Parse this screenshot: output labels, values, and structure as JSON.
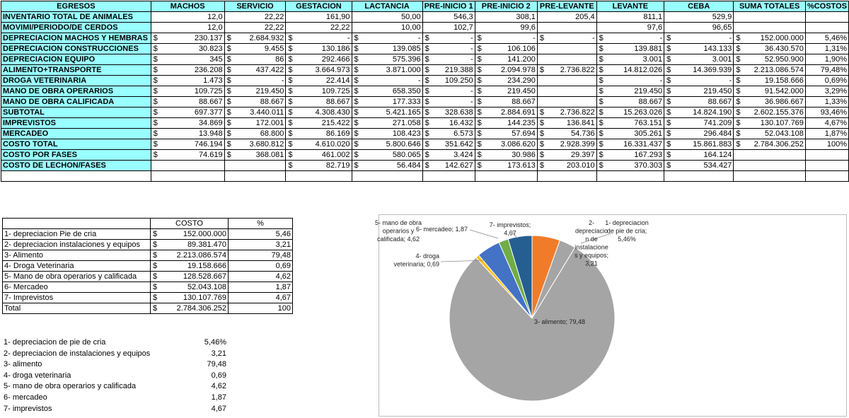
{
  "main_table": {
    "headers": [
      "EGRESOS",
      "MACHOS",
      "SERVICIO",
      "GESTACION",
      "LACTANCIA",
      "PRE-INICIO 1",
      "PRE-INICIO 2",
      "PRE-LEVANTE",
      "LEVANTE",
      "CEBA",
      "SUMA TOTALES",
      "%COSTOS"
    ],
    "currency_symbol": "$",
    "rows": [
      {
        "label": "INVENTARIO TOTAL DE ANIMALES",
        "cur": false,
        "cells": [
          "12,0",
          "22,22",
          "161,90",
          "50,00",
          "546,3",
          "308,1",
          "205,4",
          "811,1",
          "529,9",
          "",
          ""
        ]
      },
      {
        "label": "MOVIMI/PERIODO/DE CERDOS",
        "cur": false,
        "cells": [
          "12,0",
          "22,22",
          "22,22",
          "10,00",
          "102,7",
          "99,6",
          "",
          "97,6",
          "96,65",
          "",
          ""
        ]
      },
      {
        "label": "DEPRECIACION MACHOS Y HEMBRAS",
        "cur": true,
        "cells": [
          "230.137",
          "2.684.932",
          "-",
          "-",
          "-",
          "-",
          "-",
          "-",
          "-",
          "152.000.000",
          "5,46%"
        ],
        "sym": [
          1,
          1,
          1,
          1,
          1,
          1,
          1,
          1,
          1,
          1,
          0
        ]
      },
      {
        "label": "DEPRECIACION CONSTRUCCIONES",
        "cur": true,
        "cells": [
          "30.823",
          "9.455",
          "130.186",
          "139.085",
          "-",
          "106.106",
          "",
          "139.881",
          "143.133",
          "36.430.570",
          "1,31%"
        ],
        "sym": [
          1,
          1,
          1,
          1,
          1,
          1,
          0,
          1,
          1,
          1,
          0
        ]
      },
      {
        "label": "DEPRECIACION EQUIPO",
        "cur": true,
        "cells": [
          "345",
          "86",
          "292.466",
          "575.396",
          "-",
          "141.200",
          "",
          "3.001",
          "3.001",
          "52.950.900",
          "1,90%"
        ],
        "sym": [
          1,
          1,
          1,
          1,
          1,
          1,
          0,
          1,
          1,
          1,
          0
        ]
      },
      {
        "label": "ALIMENTO+TRANSPORTE",
        "cur": true,
        "cells": [
          "236.208",
          "437.422",
          "3.664.973",
          "3.871.000",
          "219.388",
          "2.094.978",
          "2.736.822",
          "14.812.026",
          "14.369.939",
          "2.213.086.574",
          "79,48%"
        ],
        "sym": [
          1,
          1,
          1,
          1,
          1,
          1,
          1,
          1,
          1,
          1,
          0
        ]
      },
      {
        "label": "DROGA VETERINARIA",
        "cur": true,
        "cells": [
          "1.473",
          "-",
          "22.414",
          "-",
          "109.250",
          "234.290",
          "",
          "-",
          "-",
          "19.158.666",
          "0,69%"
        ],
        "sym": [
          1,
          1,
          1,
          1,
          1,
          1,
          0,
          1,
          1,
          1,
          0
        ]
      },
      {
        "label": "MANO DE OBRA OPERARIOS",
        "cur": true,
        "cells": [
          "109.725",
          "219.450",
          "109.725",
          "658.350",
          "-",
          "219.450",
          "",
          "219.450",
          "219.450",
          "91.542.000",
          "3,29%"
        ],
        "sym": [
          1,
          1,
          1,
          1,
          1,
          1,
          0,
          1,
          1,
          1,
          0
        ]
      },
      {
        "label": "MANO DE OBRA CALIFICADA",
        "cur": true,
        "cells": [
          "88.667",
          "88.667",
          "88.667",
          "177.333",
          "-",
          "88.667",
          "",
          "88.667",
          "88.667",
          "36.986.667",
          "1,33%"
        ],
        "sym": [
          1,
          1,
          1,
          1,
          1,
          1,
          0,
          1,
          1,
          1,
          0
        ]
      },
      {
        "label": "SUBTOTAL",
        "cur": true,
        "cells": [
          "697.377",
          "3.440.011",
          "4.308.430",
          "5.421.165",
          "328.638",
          "2.884.691",
          "2.736.822",
          "15.263.026",
          "14.824.190",
          "2.602.155.376",
          "93,46%"
        ],
        "sym": [
          1,
          1,
          1,
          1,
          1,
          1,
          1,
          1,
          1,
          1,
          0
        ]
      },
      {
        "label": "IMPREVISTOS",
        "cur": true,
        "cells": [
          "34.869",
          "172.001",
          "215.422",
          "271.058",
          "16.432",
          "144.235",
          "136.841",
          "763.151",
          "741.209",
          "130.107.769",
          "4,67%"
        ],
        "sym": [
          1,
          1,
          1,
          1,
          1,
          1,
          1,
          1,
          1,
          1,
          0
        ]
      },
      {
        "label": "MERCADEO",
        "cur": true,
        "cells": [
          "13.948",
          "68.800",
          "86.169",
          "108.423",
          "6.573",
          "57.694",
          "54.736",
          "305.261",
          "296.484",
          "52.043.108",
          "1,87%"
        ],
        "sym": [
          1,
          1,
          1,
          1,
          1,
          1,
          1,
          1,
          1,
          1,
          0
        ]
      },
      {
        "label": "COSTO TOTAL",
        "cur": true,
        "cells": [
          "746.194",
          "3.680.812",
          "4.610.020",
          "5.800.646",
          "351.642",
          "3.086.620",
          "2.928.399",
          "16.331.437",
          "15.861.883",
          "2.784.306.252",
          "100%"
        ],
        "sym": [
          1,
          1,
          1,
          1,
          1,
          1,
          1,
          1,
          1,
          1,
          0
        ]
      },
      {
        "label": "COSTO POR FASES",
        "cur": true,
        "cells": [
          "74.619",
          "368.081",
          "461.002",
          "580.065",
          "3.424",
          "30.986",
          "29.397",
          "167.293",
          "164.124",
          "",
          ""
        ],
        "sym": [
          1,
          1,
          1,
          1,
          1,
          1,
          1,
          1,
          1,
          0,
          0
        ]
      },
      {
        "label": "COSTO DE LECHON/FASES",
        "cur": true,
        "cells": [
          "",
          "",
          "82.719",
          "56.484",
          "142.627",
          "173.613",
          "203.010",
          "370.303",
          "534.427",
          "",
          ""
        ],
        "sym": [
          0,
          0,
          1,
          1,
          1,
          1,
          1,
          1,
          1,
          0,
          0
        ]
      }
    ]
  },
  "summary_table": {
    "headers": [
      "",
      "COSTO",
      "%"
    ],
    "currency_symbol": "$",
    "rows": [
      {
        "label": "1- depreciacion Pie de cria",
        "cost": "152.000.000",
        "pct": "5,46"
      },
      {
        "label": "2- depreciacion instalaciones y equipos",
        "cost": "89.381.470",
        "pct": "3,21"
      },
      {
        "label": "3- Alimento",
        "cost": "2.213.086.574",
        "pct": "79,48"
      },
      {
        "label": "4- Droga Veterinaria",
        "cost": "19.158.666",
        "pct": "0,69"
      },
      {
        "label": "5- Mano de obra operarios y calificada",
        "cost": "128.528.667",
        "pct": "4,62"
      },
      {
        "label": "6- Mercadeo",
        "cost": "52.043.108",
        "pct": "1,87"
      },
      {
        "label": "7- Imprevistos",
        "cost": "130.107.769",
        "pct": "4,67"
      },
      {
        "label": "Total",
        "cost": "2.784.306.252",
        "pct": "100"
      }
    ]
  },
  "list": [
    {
      "label": "1- depreciacion de pie de cria",
      "value": "5,46%"
    },
    {
      "label": "2- depreciacion de instalaciones y equipos",
      "value": "3,21"
    },
    {
      "label": "3- alimento",
      "value": "79,48"
    },
    {
      "label": "4- droga veterinaria",
      "value": "0,69"
    },
    {
      "label": "5- mano de obra operarios y calificada",
      "value": "4,62"
    },
    {
      "label": "6- mercadeo",
      "value": "1,87"
    },
    {
      "label": "7- imprevistos",
      "value": "4,67"
    }
  ],
  "chart_data": {
    "type": "pie",
    "title": "",
    "slices": [
      {
        "label": "1- depreciacion de pie de cria; 5,46%",
        "value": 5.46,
        "color": "#f07c2a"
      },
      {
        "label": "2- depreciacion de instalaciones y equipos; 3,21",
        "value": 3.21,
        "color": "#a5a5a5"
      },
      {
        "label": "3- alimento; 79,48",
        "value": 79.48,
        "color": "#a5a5a5"
      },
      {
        "label": "4- droga veterinaria; 0,69",
        "value": 0.69,
        "color": "#ffc000"
      },
      {
        "label": "5- mano de obra operarios y calificada; 4,62",
        "value": 4.62,
        "color": "#4472c4"
      },
      {
        "label": "6- mercadeo; 1,87",
        "value": 1.87,
        "color": "#70ad47"
      },
      {
        "label": "7- imprevistos; 4,67",
        "value": 4.67,
        "color": "#255e91"
      }
    ],
    "data_labels": [
      {
        "lines": [
          "1- depreciacion",
          "de pie de cria;",
          "5,46%"
        ]
      },
      {
        "lines": [
          "2-",
          "depreciacio",
          "n de",
          "instalacione",
          "s y equipos;",
          "3,21"
        ]
      },
      {
        "lines": [
          "3- alimento; 79,48"
        ]
      },
      {
        "lines": [
          "4- droga",
          "veterinaria; 0,69"
        ]
      },
      {
        "lines": [
          "5- mano de obra",
          "operarios y",
          "calificada; 4,62"
        ]
      },
      {
        "lines": [
          "6- mercadeo; 1,87"
        ]
      },
      {
        "lines": [
          "7- imprevistos;",
          "4,67"
        ]
      }
    ]
  }
}
